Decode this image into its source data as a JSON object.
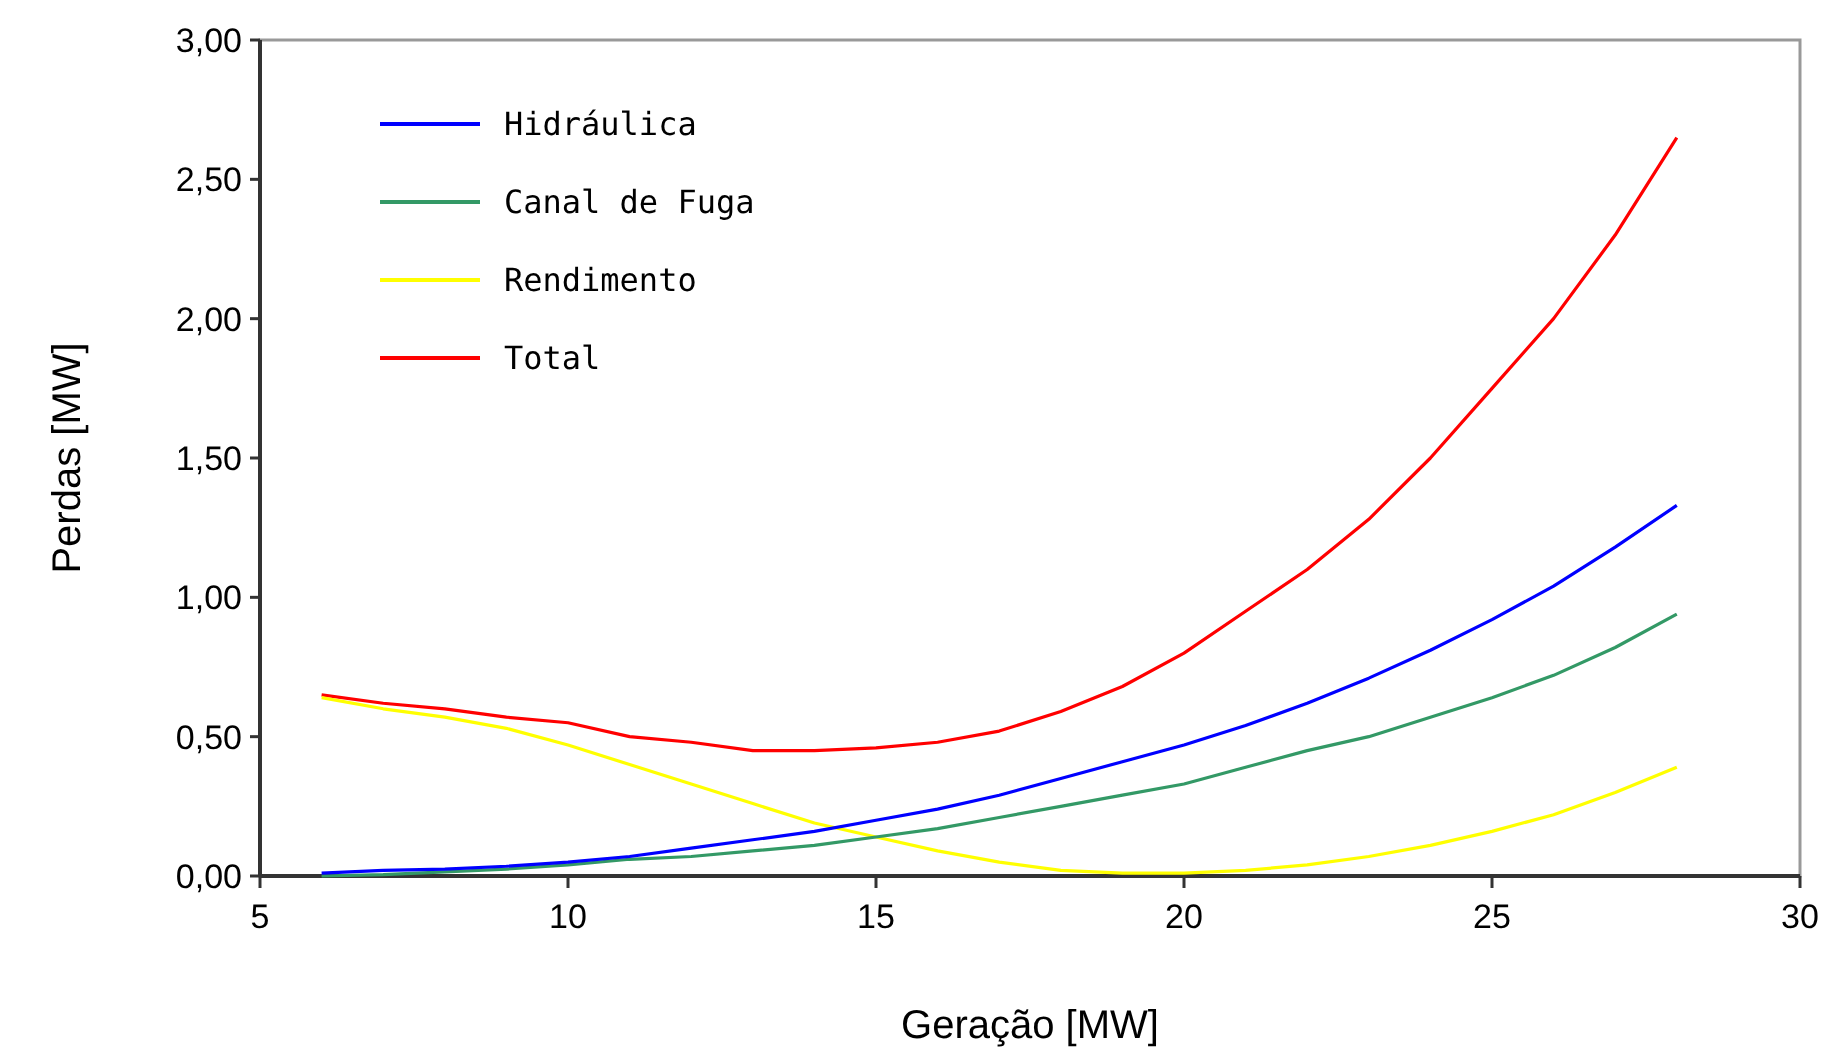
{
  "chart_data": {
    "type": "line",
    "xlabel": "Geração [MW]",
    "ylabel": "Perdas [MW]",
    "x": [
      6,
      7,
      8,
      9,
      10,
      11,
      12,
      13,
      14,
      15,
      16,
      17,
      18,
      19,
      20,
      21,
      22,
      23,
      24,
      25,
      26,
      27,
      28
    ],
    "xlim": [
      5,
      30
    ],
    "xticks": [
      5,
      10,
      15,
      20,
      25,
      30
    ],
    "ylim": [
      0,
      3
    ],
    "yticks": [
      {
        "value": 0,
        "label": "0,00"
      },
      {
        "value": 0.5,
        "label": "0,50"
      },
      {
        "value": 1,
        "label": "1,00"
      },
      {
        "value": 1.5,
        "label": "1,50"
      },
      {
        "value": 2,
        "label": "2,00"
      },
      {
        "value": 2.5,
        "label": "2,50"
      },
      {
        "value": 3,
        "label": "3,00"
      }
    ],
    "grid": false,
    "legend": "top left",
    "marker": "none",
    "line_style": "solid",
    "series": [
      {
        "name": "Hidráulica",
        "color": "#0000ff",
        "values": [
          0.01,
          0.02,
          0.025,
          0.035,
          0.05,
          0.07,
          0.1,
          0.13,
          0.16,
          0.2,
          0.24,
          0.29,
          0.35,
          0.41,
          0.47,
          0.54,
          0.62,
          0.71,
          0.81,
          0.92,
          1.04,
          1.18,
          1.33
        ]
      },
      {
        "name": "Canal de Fuga",
        "color": "#339966",
        "values": [
          0,
          0.005,
          0.015,
          0.025,
          0.04,
          0.06,
          0.07,
          0.09,
          0.11,
          0.14,
          0.17,
          0.21,
          0.25,
          0.29,
          0.33,
          0.39,
          0.45,
          0.5,
          0.57,
          0.64,
          0.72,
          0.82,
          0.94
        ]
      },
      {
        "name": "Rendimento",
        "color": "#ffff00",
        "values": [
          0.64,
          0.6,
          0.57,
          0.53,
          0.47,
          0.4,
          0.33,
          0.26,
          0.19,
          0.14,
          0.09,
          0.05,
          0.02,
          0.01,
          0.01,
          0.02,
          0.04,
          0.07,
          0.11,
          0.16,
          0.22,
          0.3,
          0.39
        ]
      },
      {
        "name": "Total",
        "color": "#ff0000",
        "values": [
          0.65,
          0.62,
          0.6,
          0.57,
          0.55,
          0.5,
          0.48,
          0.45,
          0.45,
          0.46,
          0.48,
          0.52,
          0.59,
          0.68,
          0.8,
          0.95,
          1.1,
          1.28,
          1.5,
          1.75,
          2.0,
          2.3,
          2.65
        ]
      }
    ]
  }
}
